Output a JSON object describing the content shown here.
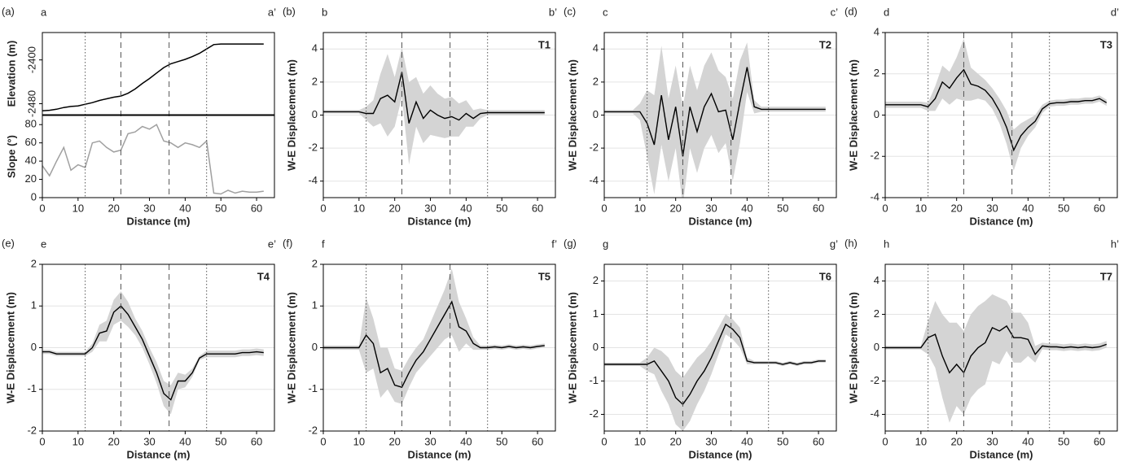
{
  "chart_data": [
    {
      "type": "profile",
      "panel": "(a)",
      "start_label": "a",
      "end_label": "a’",
      "xlabel": "Distance (m)",
      "x": [
        0,
        2,
        4,
        6,
        8,
        10,
        12,
        14,
        16,
        18,
        20,
        22,
        24,
        26,
        28,
        30,
        32,
        34,
        36,
        38,
        40,
        42,
        44,
        46,
        48,
        50,
        52,
        54,
        56,
        58,
        60,
        62
      ],
      "xlim": [
        0,
        65
      ],
      "xticks": [
        0,
        10,
        20,
        30,
        40,
        50,
        60
      ],
      "vlines": [
        {
          "x": 12,
          "style": "dotted"
        },
        {
          "x": 22,
          "style": "dashed"
        },
        {
          "x": 35.5,
          "style": "dashed"
        },
        {
          "x": 46,
          "style": "dotted"
        }
      ],
      "subplots": [
        {
          "ylabel": "Elevation (m)",
          "ylim": [
            -2500,
            -2350
          ],
          "yticks": [
            -2400,
            -2480
          ],
          "rotate_ticks": true,
          "color": "#000000",
          "values": [
            -2493,
            -2492,
            -2490,
            -2487,
            -2485,
            -2484,
            -2481,
            -2478,
            -2474,
            -2471,
            -2468,
            -2466,
            -2461,
            -2453,
            -2443,
            -2434,
            -2424,
            -2414,
            -2407,
            -2403,
            -2399,
            -2394,
            -2388,
            -2380,
            -2372,
            -2371,
            -2371,
            -2371,
            -2371,
            -2371,
            -2371,
            -2371
          ]
        },
        {
          "ylabel": "Slope (°)",
          "ylim": [
            0,
            90
          ],
          "yticks": [
            0,
            20,
            40,
            60,
            80
          ],
          "rotate_ticks": false,
          "color": "#a0a0a0",
          "values": [
            35,
            24,
            40,
            55,
            30,
            36,
            33,
            60,
            62,
            55,
            50,
            52,
            70,
            72,
            78,
            75,
            80,
            62,
            60,
            55,
            60,
            58,
            55,
            62,
            5,
            4,
            8,
            5,
            7,
            6,
            6,
            7
          ]
        }
      ]
    },
    {
      "type": "line",
      "panel": "(b)",
      "start_label": "b",
      "end_label": "b’",
      "title": "T1",
      "xlabel": "Distance (m)",
      "ylabel": "W-E Displacement (m)",
      "x": [
        0,
        2,
        4,
        6,
        8,
        10,
        12,
        14,
        16,
        18,
        20,
        22,
        24,
        26,
        28,
        30,
        32,
        34,
        36,
        38,
        40,
        42,
        44,
        46,
        48,
        50,
        52,
        54,
        56,
        58,
        60,
        62
      ],
      "xlim": [
        0,
        65
      ],
      "xticks": [
        0,
        10,
        20,
        30,
        40,
        50,
        60
      ],
      "ylim": [
        -5,
        5
      ],
      "yticks": [
        -4,
        -2,
        0,
        2,
        4
      ],
      "grid": true,
      "color": "#000000",
      "band_color": "#d4d4d4",
      "vlines": [
        {
          "x": 12,
          "style": "dotted"
        },
        {
          "x": 22,
          "style": "dashed"
        },
        {
          "x": 35.5,
          "style": "dashed"
        },
        {
          "x": 46,
          "style": "dotted"
        }
      ],
      "values": [
        0.2,
        0.2,
        0.2,
        0.2,
        0.2,
        0.2,
        0.1,
        0.1,
        1.0,
        1.2,
        0.8,
        2.6,
        -0.5,
        0.8,
        -0.2,
        0.3,
        0,
        -0.2,
        -0.1,
        -0.3,
        0.1,
        -0.2,
        0.1,
        0.15,
        0.15,
        0.15,
        0.15,
        0.15,
        0.15,
        0.15,
        0.15,
        0.15
      ],
      "spread": [
        0.1,
        0.1,
        0.1,
        0.1,
        0.1,
        0.1,
        0.4,
        0.8,
        1.5,
        2.5,
        1.5,
        1.5,
        2.5,
        1.5,
        1.5,
        1.5,
        1.3,
        1.2,
        1.2,
        1.0,
        0.8,
        0.5,
        0.3,
        0.15,
        0.15,
        0.15,
        0.15,
        0.15,
        0.15,
        0.15,
        0.15,
        0.15
      ]
    },
    {
      "type": "line",
      "panel": "(c)",
      "start_label": "c",
      "end_label": "c’",
      "title": "T2",
      "xlabel": "Distance (m)",
      "ylabel": "W-E Displacement (m)",
      "x": [
        0,
        2,
        4,
        6,
        8,
        10,
        12,
        14,
        16,
        18,
        20,
        22,
        24,
        26,
        28,
        30,
        32,
        34,
        36,
        38,
        40,
        42,
        44,
        46,
        48,
        50,
        52,
        54,
        56,
        58,
        60,
        62
      ],
      "xlim": [
        0,
        65
      ],
      "xticks": [
        0,
        10,
        20,
        30,
        40,
        50,
        60
      ],
      "ylim": [
        -5,
        5
      ],
      "yticks": [
        -4,
        -2,
        0,
        2,
        4
      ],
      "grid": true,
      "color": "#000000",
      "band_color": "#d4d4d4",
      "vlines": [
        {
          "x": 12,
          "style": "dotted"
        },
        {
          "x": 22,
          "style": "dashed"
        },
        {
          "x": 35.5,
          "style": "dashed"
        },
        {
          "x": 46,
          "style": "dotted"
        }
      ],
      "values": [
        0.2,
        0.2,
        0.2,
        0.2,
        0.2,
        0.2,
        -0.5,
        -1.8,
        1.2,
        -1.5,
        0.5,
        -2.5,
        0.5,
        -1.0,
        0.5,
        1.3,
        0.2,
        0.3,
        -1.5,
        0.8,
        2.9,
        0.5,
        0.35,
        0.35,
        0.35,
        0.35,
        0.35,
        0.35,
        0.35,
        0.35,
        0.35,
        0.35
      ],
      "spread": [
        0.1,
        0.1,
        0.1,
        0.1,
        0.1,
        0.5,
        2,
        3,
        3,
        2.5,
        2.5,
        3,
        2.5,
        2.5,
        2.5,
        2.5,
        2.5,
        2,
        2.5,
        2.5,
        1.5,
        0.4,
        0.15,
        0.15,
        0.15,
        0.15,
        0.15,
        0.15,
        0.15,
        0.15,
        0.15,
        0.15
      ]
    },
    {
      "type": "line",
      "panel": "(d)",
      "start_label": "d",
      "end_label": "d’",
      "title": "T3",
      "xlabel": "Distance (m)",
      "ylabel": "W-E Displacement (m)",
      "x": [
        0,
        2,
        4,
        6,
        8,
        10,
        12,
        14,
        16,
        18,
        20,
        22,
        24,
        26,
        28,
        30,
        32,
        34,
        36,
        38,
        40,
        42,
        44,
        46,
        48,
        50,
        52,
        54,
        56,
        58,
        60,
        62
      ],
      "xlim": [
        0,
        65
      ],
      "xticks": [
        0,
        10,
        20,
        30,
        40,
        50,
        60
      ],
      "ylim": [
        -4,
        4
      ],
      "yticks": [
        -4,
        -2,
        0,
        2,
        4
      ],
      "grid": true,
      "color": "#000000",
      "band_color": "#d4d4d4",
      "vlines": [
        {
          "x": 12,
          "style": "dotted"
        },
        {
          "x": 22,
          "style": "dashed"
        },
        {
          "x": 35.5,
          "style": "dashed"
        },
        {
          "x": 46,
          "style": "dotted"
        }
      ],
      "values": [
        0.5,
        0.5,
        0.5,
        0.5,
        0.5,
        0.5,
        0.4,
        0.8,
        1.6,
        1.3,
        1.8,
        2.2,
        1.5,
        1.4,
        1.2,
        0.8,
        0.2,
        -0.6,
        -1.7,
        -1.0,
        -0.6,
        -0.3,
        0.3,
        0.55,
        0.6,
        0.6,
        0.65,
        0.65,
        0.7,
        0.7,
        0.8,
        0.6
      ],
      "spread": [
        0.15,
        0.15,
        0.15,
        0.15,
        0.15,
        0.15,
        0.2,
        0.6,
        0.8,
        0.8,
        1.0,
        1.5,
        0.8,
        0.6,
        0.5,
        0.5,
        0.6,
        0.8,
        1.0,
        0.6,
        0.4,
        0.3,
        0.2,
        0.15,
        0.15,
        0.15,
        0.15,
        0.15,
        0.15,
        0.15,
        0.15,
        0.15
      ]
    },
    {
      "type": "line",
      "panel": "(e)",
      "start_label": "e",
      "end_label": "e’",
      "title": "T4",
      "xlabel": "Distance (m)",
      "ylabel": "W-E Displacement (m)",
      "x": [
        0,
        2,
        4,
        6,
        8,
        10,
        12,
        14,
        16,
        18,
        20,
        22,
        24,
        26,
        28,
        30,
        32,
        34,
        36,
        38,
        40,
        42,
        44,
        46,
        48,
        50,
        52,
        54,
        56,
        58,
        60,
        62
      ],
      "xlim": [
        0,
        65
      ],
      "xticks": [
        0,
        10,
        20,
        30,
        40,
        50,
        60
      ],
      "ylim": [
        -2,
        2
      ],
      "yticks": [
        -2,
        -1,
        0,
        1,
        2
      ],
      "grid": true,
      "color": "#000000",
      "band_color": "#d4d4d4",
      "vlines": [
        {
          "x": 12,
          "style": "dotted"
        },
        {
          "x": 22,
          "style": "dashed"
        },
        {
          "x": 35.5,
          "style": "dashed"
        },
        {
          "x": 46,
          "style": "dotted"
        }
      ],
      "values": [
        -0.1,
        -0.1,
        -0.15,
        -0.15,
        -0.15,
        -0.15,
        -0.15,
        0,
        0.35,
        0.4,
        0.85,
        1.0,
        0.8,
        0.5,
        0.2,
        -0.2,
        -0.6,
        -1.1,
        -1.25,
        -0.8,
        -0.8,
        -0.6,
        -0.25,
        -0.15,
        -0.15,
        -0.15,
        -0.15,
        -0.15,
        -0.12,
        -0.12,
        -0.1,
        -0.12
      ],
      "spread": [
        0.05,
        0.05,
        0.05,
        0.05,
        0.05,
        0.05,
        0.05,
        0.1,
        0.2,
        0.25,
        0.3,
        0.35,
        0.3,
        0.2,
        0.2,
        0.2,
        0.25,
        0.3,
        0.35,
        0.2,
        0.15,
        0.1,
        0.05,
        0.08,
        0.08,
        0.08,
        0.08,
        0.08,
        0.08,
        0.08,
        0.08,
        0.08
      ]
    },
    {
      "type": "line",
      "panel": "(f)",
      "start_label": "f",
      "end_label": "f’",
      "title": "T5",
      "xlabel": "Distance (m)",
      "ylabel": "W-E Displacement (m)",
      "x": [
        0,
        2,
        4,
        6,
        8,
        10,
        12,
        14,
        16,
        18,
        20,
        22,
        24,
        26,
        28,
        30,
        32,
        34,
        36,
        38,
        40,
        42,
        44,
        46,
        48,
        50,
        52,
        54,
        56,
        58,
        60,
        62
      ],
      "xlim": [
        0,
        65
      ],
      "xticks": [
        0,
        10,
        20,
        30,
        40,
        50,
        60
      ],
      "ylim": [
        -2,
        2
      ],
      "yticks": [
        -2,
        -1,
        0,
        1,
        2
      ],
      "grid": true,
      "color": "#000000",
      "band_color": "#d4d4d4",
      "vlines": [
        {
          "x": 12,
          "style": "dotted"
        },
        {
          "x": 22,
          "style": "dashed"
        },
        {
          "x": 35.5,
          "style": "dashed"
        },
        {
          "x": 46,
          "style": "dotted"
        }
      ],
      "values": [
        0,
        0,
        0,
        0,
        0,
        0,
        0.3,
        0.1,
        -0.6,
        -0.5,
        -0.9,
        -0.95,
        -0.6,
        -0.3,
        -0.1,
        0.2,
        0.5,
        0.8,
        1.1,
        0.5,
        0.4,
        0.1,
        0,
        0,
        0.02,
        0,
        0.03,
        0,
        0.02,
        0,
        0.03,
        0.05
      ],
      "spread": [
        0.05,
        0.05,
        0.05,
        0.05,
        0.05,
        0.05,
        0.9,
        0.6,
        0.6,
        0.5,
        0.4,
        0.4,
        0.35,
        0.3,
        0.3,
        0.4,
        0.5,
        0.6,
        0.8,
        0.6,
        0.3,
        0.15,
        0.05,
        0.05,
        0.05,
        0.05,
        0.05,
        0.05,
        0.05,
        0.05,
        0.05,
        0.05
      ]
    },
    {
      "type": "line",
      "panel": "(g)",
      "start_label": "g",
      "end_label": "g’",
      "title": "T6",
      "xlabel": "Distance (m)",
      "ylabel": "W-E Displacement (m)",
      "x": [
        0,
        2,
        4,
        6,
        8,
        10,
        12,
        14,
        16,
        18,
        20,
        22,
        24,
        26,
        28,
        30,
        32,
        34,
        36,
        38,
        40,
        42,
        44,
        46,
        48,
        50,
        52,
        54,
        56,
        58,
        60,
        62
      ],
      "xlim": [
        0,
        65
      ],
      "xticks": [
        0,
        10,
        20,
        30,
        40,
        50,
        60
      ],
      "ylim": [
        -2.5,
        2.5
      ],
      "yticks": [
        -2,
        -1,
        0,
        1,
        2
      ],
      "grid": true,
      "color": "#000000",
      "band_color": "#d4d4d4",
      "vlines": [
        {
          "x": 12,
          "style": "dotted"
        },
        {
          "x": 22,
          "style": "dashed"
        },
        {
          "x": 35.5,
          "style": "dashed"
        },
        {
          "x": 46,
          "style": "dotted"
        }
      ],
      "values": [
        -0.5,
        -0.5,
        -0.5,
        -0.5,
        -0.5,
        -0.5,
        -0.5,
        -0.4,
        -0.7,
        -1.0,
        -1.5,
        -1.7,
        -1.4,
        -1.0,
        -0.7,
        -0.3,
        0.2,
        0.7,
        0.55,
        0.3,
        -0.4,
        -0.45,
        -0.45,
        -0.45,
        -0.45,
        -0.5,
        -0.45,
        -0.5,
        -0.45,
        -0.45,
        -0.4,
        -0.4
      ],
      "spread": [
        0.05,
        0.05,
        0.05,
        0.05,
        0.05,
        0.05,
        0.2,
        0.4,
        0.6,
        0.7,
        0.8,
        0.8,
        0.8,
        0.7,
        0.6,
        0.5,
        0.4,
        0.3,
        0.3,
        0.3,
        0.1,
        0.05,
        0.05,
        0.05,
        0.05,
        0.05,
        0.05,
        0.05,
        0.05,
        0.05,
        0.05,
        0.05
      ]
    },
    {
      "type": "line",
      "panel": "(h)",
      "start_label": "h",
      "end_label": "h’",
      "title": "T7",
      "xlabel": "Distance (m)",
      "ylabel": "W-E Displacement (m)",
      "x": [
        0,
        2,
        4,
        6,
        8,
        10,
        12,
        14,
        16,
        18,
        20,
        22,
        24,
        26,
        28,
        30,
        32,
        34,
        36,
        38,
        40,
        42,
        44,
        46,
        48,
        50,
        52,
        54,
        56,
        58,
        60,
        62
      ],
      "xlim": [
        0,
        65
      ],
      "xticks": [
        0,
        10,
        20,
        30,
        40,
        50,
        60
      ],
      "ylim": [
        -5,
        5
      ],
      "yticks": [
        -4,
        -2,
        0,
        2,
        4
      ],
      "grid": true,
      "color": "#000000",
      "band_color": "#d4d4d4",
      "vlines": [
        {
          "x": 12,
          "style": "dotted"
        },
        {
          "x": 22,
          "style": "dashed"
        },
        {
          "x": 35.5,
          "style": "dashed"
        },
        {
          "x": 46,
          "style": "dotted"
        }
      ],
      "values": [
        0,
        0,
        0,
        0,
        0,
        0,
        0.6,
        0.8,
        -0.5,
        -1.5,
        -1.0,
        -1.5,
        -0.5,
        0,
        0.3,
        1.2,
        1.0,
        1.3,
        0.6,
        0.6,
        0.5,
        -0.4,
        0.1,
        0.05,
        0.05,
        0,
        0.05,
        0,
        0.05,
        0,
        0.05,
        0.2
      ],
      "spread": [
        0.1,
        0.1,
        0.1,
        0.1,
        0.1,
        0.1,
        1.0,
        2.0,
        2.5,
        3.0,
        2.5,
        2.5,
        2.5,
        2.5,
        2.5,
        2.0,
        2.0,
        1.5,
        1.5,
        1.5,
        1.0,
        0.5,
        0.2,
        0.2,
        0.2,
        0.2,
        0.2,
        0.2,
        0.2,
        0.2,
        0.2,
        0.2
      ]
    }
  ]
}
